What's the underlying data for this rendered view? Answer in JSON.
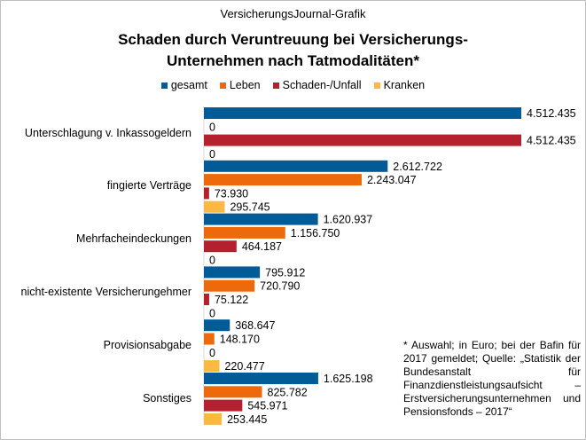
{
  "header": {
    "source": "VersicherungsJournal-Grafik",
    "title_line1": "Schaden durch Veruntreuung bei Versicherungs-",
    "title_line2": "Unternehmen nach Tatmodalitäten*"
  },
  "note": "* Auswahl; in Euro; bei der Bafin für 2017 gemeldet; Quelle: „Statistik der Bundesanstalt für Finanzdienstleistungsaufsicht – Erstversicherungsunternehmen und Pensionsfonds – 2017“",
  "chart_data": {
    "type": "bar",
    "orientation": "horizontal",
    "title": "Schaden durch Veruntreuung bei Versicherungs-Unternehmen nach Tatmodalitäten*",
    "categories": [
      "Unterschlagung v. Inkassogeldern",
      "fingierte Verträge",
      "Mehrfacheindeckungen",
      "nicht-existente Versicherungehmer",
      "Provisionsabgabe",
      "Sonstiges"
    ],
    "series": [
      {
        "name": "gesamt",
        "color": "#005b96",
        "values": [
          4512435,
          2612722,
          1620937,
          795912,
          368647,
          1625198
        ],
        "labels": [
          "4.512.435",
          "2.612.722",
          "1.620.937",
          "795.912",
          "368.647",
          "1.625.198"
        ]
      },
      {
        "name": "Leben",
        "color": "#ec6a0c",
        "values": [
          0,
          2243047,
          1156750,
          720790,
          148170,
          825782
        ],
        "labels": [
          "0",
          "2.243.047",
          "1.156.750",
          "720.790",
          "148.170",
          "825.782"
        ]
      },
      {
        "name": "Schaden-/Unfall",
        "color": "#b5202e",
        "values": [
          4512435,
          73930,
          464187,
          75122,
          0,
          545971
        ],
        "labels": [
          "4.512.435",
          "73.930",
          "464.187",
          "75.122",
          "0",
          "545.971"
        ]
      },
      {
        "name": "Kranken",
        "color": "#fbb843",
        "values": [
          0,
          295745,
          0,
          0,
          220477,
          253445
        ],
        "labels": [
          "0",
          "295.745",
          "0",
          "0",
          "220.477",
          "253.445"
        ]
      }
    ],
    "xlim": [
      0,
      4600000
    ],
    "legend": "top"
  }
}
